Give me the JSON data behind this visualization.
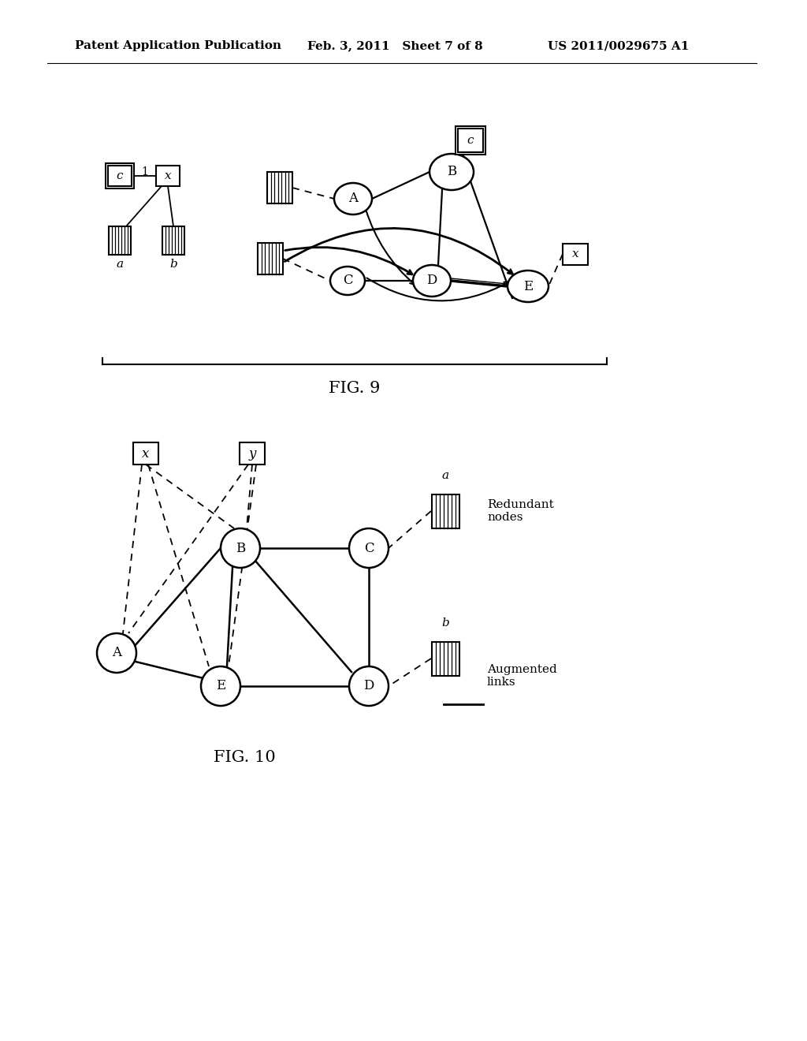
{
  "bg_color": "#ffffff",
  "header_left": "Patent Application Publication",
  "header_center": "Feb. 3, 2011   Sheet 7 of 8",
  "header_right": "US 2011/0029675 A1",
  "fig9_label": "FIG. 9",
  "fig10_label": "FIG. 10",
  "fig10_legend_redundant": "Redundant\nnodes",
  "fig10_legend_augmented": "Augmented\nlinks"
}
